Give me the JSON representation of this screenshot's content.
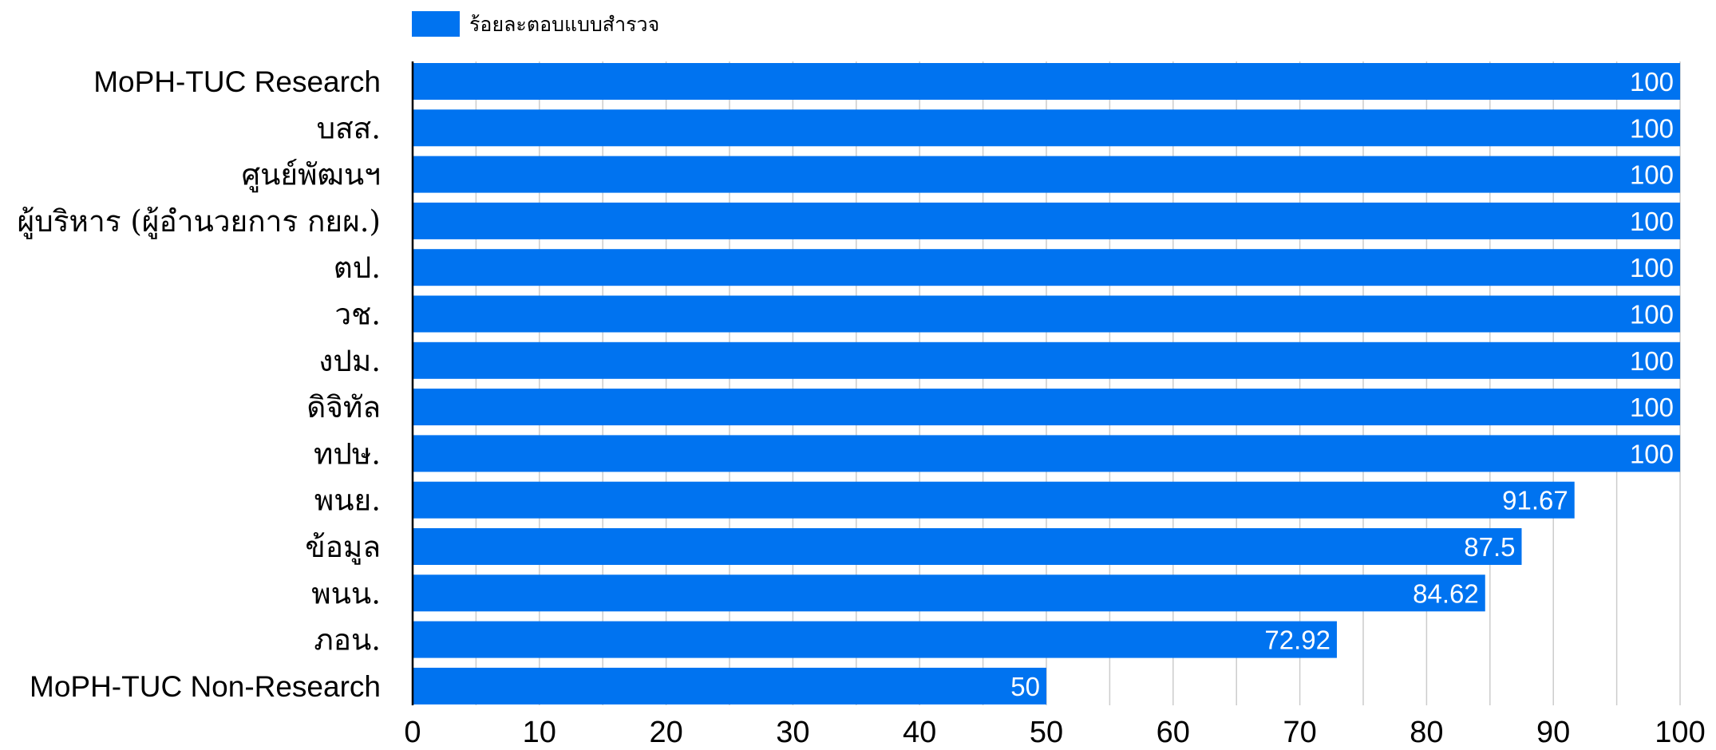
{
  "chart_data": {
    "type": "bar",
    "orientation": "horizontal",
    "categories": [
      "MoPH-TUC Research",
      "บสส.",
      "ศูนย์พัฒนฯ",
      "ผู้บริหาร (ผู้อำนวยการ กยผ.)",
      "ตป.",
      "วช.",
      "งปม.",
      "ดิจิทัล",
      "ทปษ.",
      "พนย.",
      "ข้อมูล",
      "พนน.",
      "ภอน.",
      "MoPH-TUC Non-Research"
    ],
    "series": [
      {
        "name": "ร้อยละตอบแบบสำรวจ",
        "color": "#0073f0",
        "values": [
          100,
          100,
          100,
          100,
          100,
          100,
          100,
          100,
          100,
          91.67,
          87.5,
          84.62,
          72.92,
          50
        ]
      }
    ],
    "data_labels": [
      "100",
      "100",
      "100",
      "100",
      "100",
      "100",
      "100",
      "100",
      "100",
      "91.67",
      "87.5",
      "84.62",
      "72.92",
      "50"
    ],
    "xlim": [
      0,
      100
    ],
    "major_ticks": [
      0,
      10,
      20,
      30,
      40,
      50,
      60,
      70,
      80,
      90,
      100
    ],
    "minor_gridlines": [
      5,
      15,
      25,
      35,
      45,
      55,
      65,
      75,
      85,
      95
    ],
    "grid": true,
    "legend": "top-left",
    "title": "",
    "xlabel": "",
    "ylabel": ""
  }
}
